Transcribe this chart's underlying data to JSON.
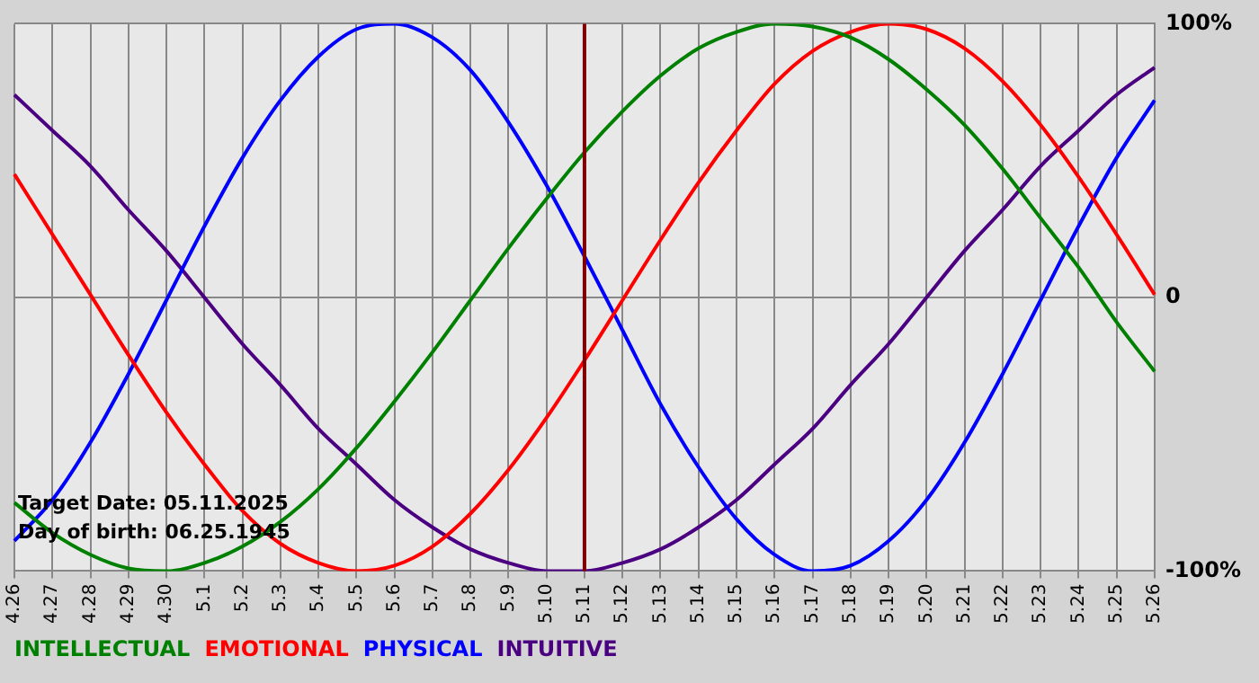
{
  "chart_data": {
    "type": "line",
    "categories": [
      "4.26",
      "4.27",
      "4.28",
      "4.29",
      "4.30",
      "5.1",
      "5.2",
      "5.3",
      "5.4",
      "5.5",
      "5.6",
      "5.7",
      "5.8",
      "5.9",
      "5.10",
      "5.11",
      "5.12",
      "5.13",
      "5.14",
      "5.15",
      "5.16",
      "5.17",
      "5.18",
      "5.19",
      "5.20",
      "5.21",
      "5.22",
      "5.23",
      "5.24",
      "5.25",
      "5.26"
    ],
    "series": [
      {
        "name": "INTELLECTUAL",
        "color": "#008000",
        "values": [
          -75,
          -86,
          -94,
          -99,
          -100,
          -97,
          -91,
          -82,
          -70,
          -55,
          -38,
          -20,
          -1,
          18,
          36,
          53,
          68,
          81,
          91,
          97,
          100,
          99,
          95,
          87,
          76,
          63,
          47,
          29,
          11,
          -9,
          -27
        ]
      },
      {
        "name": "EMOTIONAL",
        "color": "#ff0000",
        "values": [
          45,
          23,
          1,
          -21,
          -42,
          -61,
          -78,
          -90,
          -97,
          -100,
          -98,
          -91,
          -79,
          -63,
          -44,
          -23,
          -1,
          21,
          42,
          61,
          78,
          90,
          97,
          100,
          98,
          91,
          79,
          63,
          44,
          23,
          1
        ]
      },
      {
        "name": "PHYSICAL",
        "color": "#0000ff",
        "values": [
          -89,
          -74,
          -53,
          -28,
          -1,
          26,
          51,
          72,
          88,
          98,
          100,
          95,
          83,
          64,
          41,
          15,
          -12,
          -39,
          -62,
          -81,
          -94,
          -100,
          -98,
          -89,
          -74,
          -53,
          -28,
          -1,
          26,
          51,
          72
        ]
      },
      {
        "name": "INTUITIVE",
        "color": "#4b0082",
        "values": [
          74,
          61,
          48,
          32,
          17,
          0,
          -17,
          -32,
          -48,
          -61,
          -74,
          -84,
          -92,
          -97,
          -100,
          -100,
          -97,
          -92,
          -84,
          -74,
          -61,
          -48,
          -32,
          -17,
          0,
          17,
          32,
          48,
          61,
          74,
          84
        ]
      }
    ],
    "ylim": [
      -100,
      100
    ],
    "yticks": [
      {
        "value": 100,
        "label": "100%"
      },
      0,
      {
        "value": -100,
        "label": "-100%"
      }
    ],
    "grid": true,
    "legend": "bottom left",
    "marker": "none",
    "line_style": "solid",
    "ref_lines": [
      {
        "axis": "x",
        "value": "5.11",
        "color": "#800000"
      }
    ],
    "annotations": [
      "Target Date: 05.11.2025",
      "Day of birth: 06.25.1945"
    ]
  }
}
